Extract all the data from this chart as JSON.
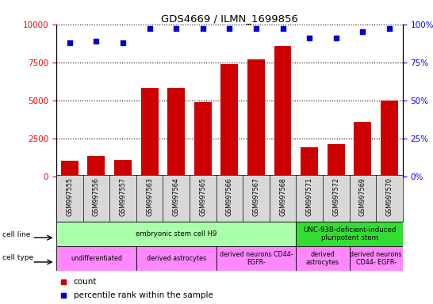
{
  "title": "GDS4669 / ILMN_1699856",
  "samples": [
    "GSM997555",
    "GSM997556",
    "GSM997557",
    "GSM997563",
    "GSM997564",
    "GSM997565",
    "GSM997566",
    "GSM997567",
    "GSM997568",
    "GSM997571",
    "GSM997572",
    "GSM997569",
    "GSM997570"
  ],
  "counts": [
    1050,
    1350,
    1100,
    5800,
    5800,
    4900,
    7400,
    7700,
    8600,
    1900,
    2100,
    3600,
    5000
  ],
  "percentiles": [
    88,
    89,
    88,
    97,
    97,
    97,
    97,
    97,
    97,
    91,
    91,
    95,
    97
  ],
  "ylim_left": [
    0,
    10000
  ],
  "ylim_right": [
    0,
    100
  ],
  "yticks_left": [
    0,
    2500,
    5000,
    7500,
    10000
  ],
  "yticks_right": [
    0,
    25,
    50,
    75,
    100
  ],
  "bar_color": "#cc0000",
  "dot_color": "#0000cc",
  "cell_line_data": [
    {
      "label": "embryonic stem cell H9",
      "start": 0,
      "end": 9,
      "color": "#aaffaa"
    },
    {
      "label": "UNC-93B-deficient-induced\npluripotent stem",
      "start": 9,
      "end": 13,
      "color": "#33dd33"
    }
  ],
  "cell_type_data": [
    {
      "label": "undifferentiated",
      "start": 0,
      "end": 3,
      "color": "#ff88ff"
    },
    {
      "label": "derived astrocytes",
      "start": 3,
      "end": 6,
      "color": "#ff88ff"
    },
    {
      "label": "derived neurons CD44-\nEGFR-",
      "start": 6,
      "end": 9,
      "color": "#ff88ff"
    },
    {
      "label": "derived\nastrocytes",
      "start": 9,
      "end": 11,
      "color": "#ff88ff"
    },
    {
      "label": "derived neurons\nCD44- EGFR-",
      "start": 11,
      "end": 13,
      "color": "#ff88ff"
    }
  ],
  "legend_count_color": "#cc0000",
  "legend_pct_color": "#0000cc",
  "plot_bg": "#ffffff",
  "fig_bg": "#ffffff"
}
